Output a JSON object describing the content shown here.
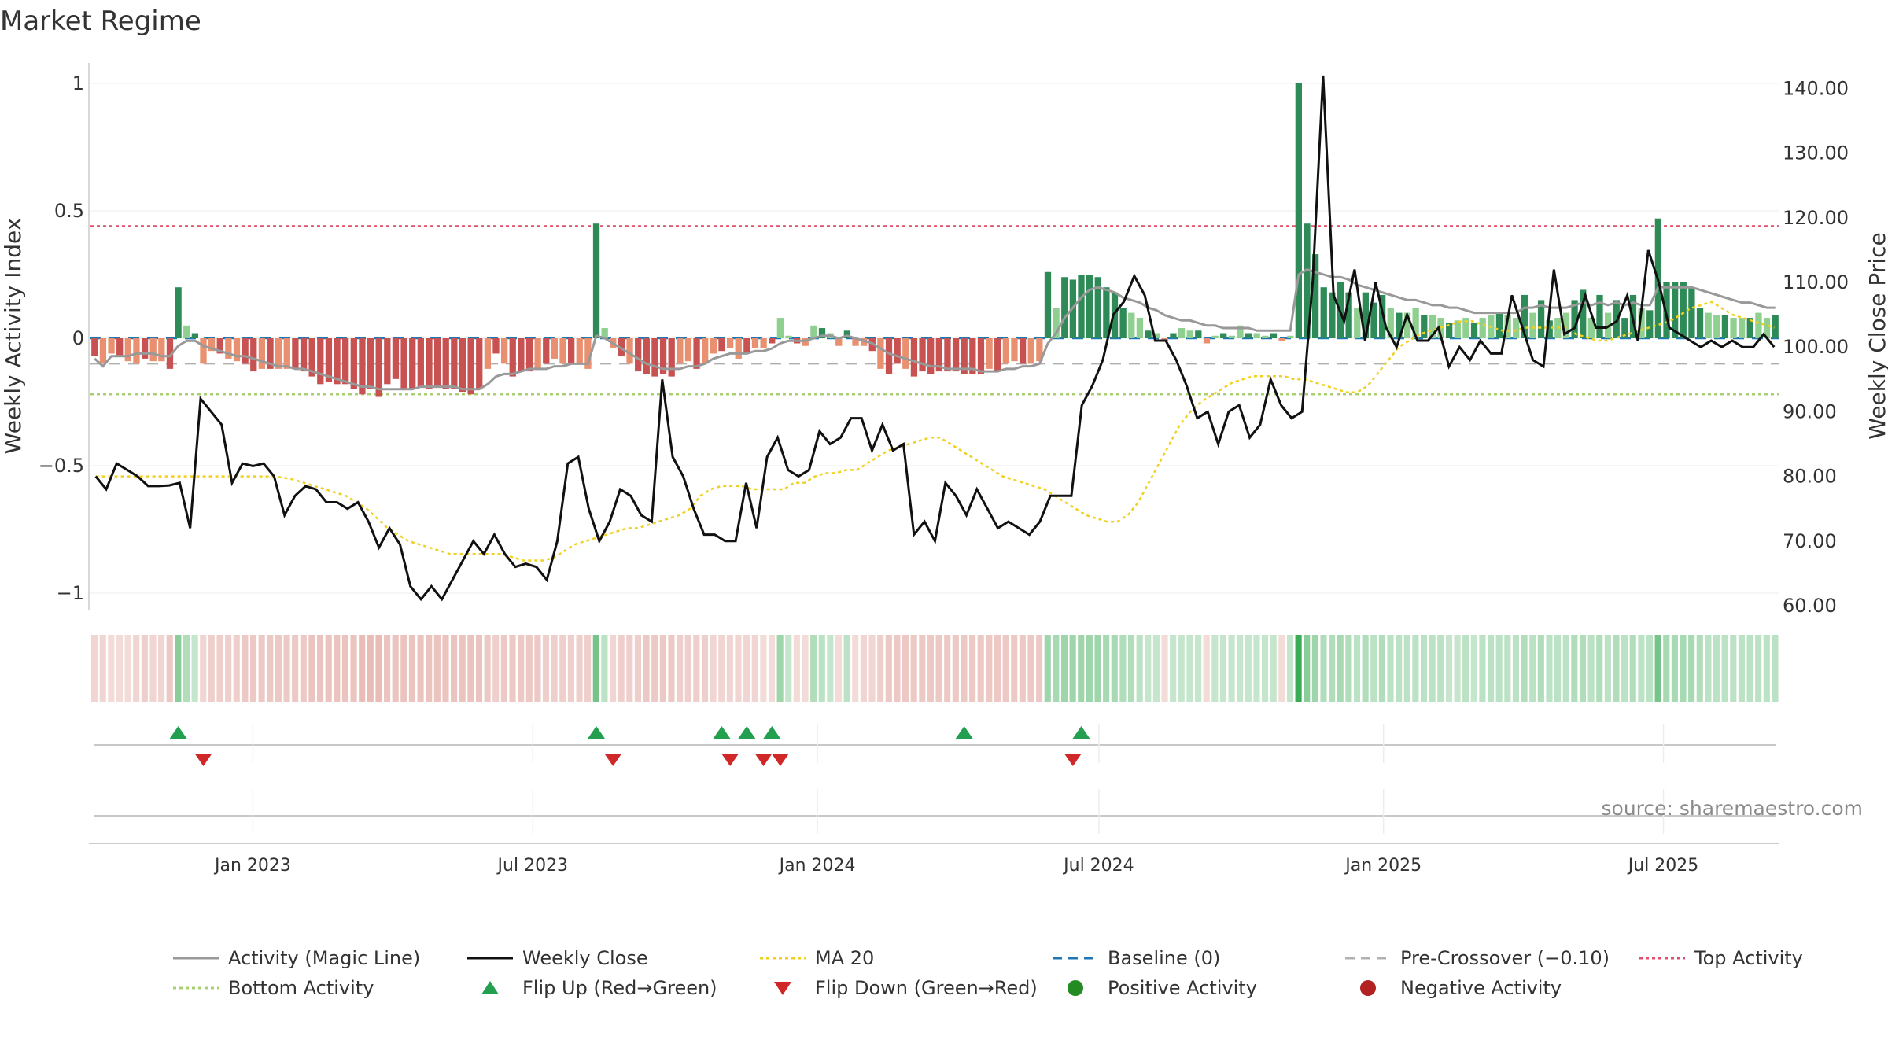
{
  "chart_data": {
    "type": "bar",
    "title": "Market Regime",
    "ylabel_left": "Weekly Activity Index",
    "ylabel_right": "Weekly Close Price",
    "source": "source: sharemaestro.com",
    "x_tick_labels": [
      "Jan 2023",
      "Jul 2023",
      "Jan 2024",
      "Jul 2024",
      "Jan 2025",
      "Jul 2025"
    ],
    "x_tick_dates": [
      "2023-01-01",
      "2023-07-01",
      "2024-01-01",
      "2024-07-01",
      "2025-01-01",
      "2025-07-01"
    ],
    "x_range": [
      "2022-09-18",
      "2025-09-14"
    ],
    "left_axis": {
      "range": [
        -1.05,
        1.05
      ],
      "ticks": [
        -1,
        -0.5,
        0,
        0.5,
        1
      ],
      "tick_labels": [
        "−1",
        "−0.5",
        "0",
        "0.5",
        "1"
      ]
    },
    "right_axis": {
      "range": [
        60,
        143
      ],
      "ticks": [
        60,
        70,
        80,
        90,
        100,
        110,
        120,
        130,
        140
      ],
      "tick_labels": [
        "60.00",
        "70.00",
        "80.00",
        "90.00",
        "100.00",
        "110.00",
        "120.00",
        "130.00",
        "140.00"
      ]
    },
    "reference_lines": {
      "baseline": 0,
      "pre_crossover": -0.1,
      "top_activity": 0.44,
      "bottom_activity": -0.22
    },
    "activity": [
      -0.07,
      -0.1,
      -0.06,
      -0.07,
      -0.09,
      -0.1,
      -0.08,
      -0.09,
      -0.09,
      -0.12,
      0.2,
      0.05,
      0.02,
      -0.1,
      -0.05,
      -0.06,
      -0.08,
      -0.09,
      -0.1,
      -0.13,
      -0.12,
      -0.12,
      -0.12,
      -0.12,
      -0.12,
      -0.13,
      -0.15,
      -0.18,
      -0.17,
      -0.18,
      -0.18,
      -0.2,
      -0.22,
      -0.2,
      -0.23,
      -0.18,
      -0.16,
      -0.2,
      -0.2,
      -0.19,
      -0.2,
      -0.19,
      -0.2,
      -0.2,
      -0.21,
      -0.22,
      -0.2,
      -0.12,
      -0.06,
      -0.1,
      -0.15,
      -0.13,
      -0.13,
      -0.12,
      -0.1,
      -0.08,
      -0.1,
      -0.1,
      -0.1,
      -0.12,
      0.45,
      0.04,
      -0.04,
      -0.07,
      -0.1,
      -0.13,
      -0.14,
      -0.15,
      -0.14,
      -0.15,
      -0.1,
      -0.09,
      -0.12,
      -0.1,
      -0.06,
      -0.05,
      -0.04,
      -0.08,
      -0.06,
      -0.04,
      -0.04,
      -0.02,
      0.08,
      0.01,
      -0.02,
      -0.03,
      0.05,
      0.04,
      0.02,
      -0.03,
      0.03,
      -0.03,
      -0.03,
      -0.05,
      -0.12,
      -0.14,
      -0.1,
      -0.12,
      -0.15,
      -0.13,
      -0.14,
      -0.13,
      -0.13,
      -0.13,
      -0.14,
      -0.14,
      -0.14,
      -0.12,
      -0.13,
      -0.1,
      -0.09,
      -0.1,
      -0.1,
      -0.09,
      0.26,
      0.12,
      0.24,
      0.23,
      0.25,
      0.25,
      0.24,
      0.2,
      0.18,
      0.12,
      0.1,
      0.08,
      0.03,
      0.02,
      -0.01,
      0.02,
      0.04,
      0.03,
      0.03,
      -0.02,
      0.01,
      0.02,
      0.01,
      0.05,
      0.02,
      0.02,
      0.01,
      0.02,
      -0.01,
      0.01,
      1.0,
      0.45,
      0.33,
      0.2,
      0.18,
      0.22,
      0.18,
      0.12,
      0.18,
      0.14,
      0.17,
      0.12,
      0.1,
      0.1,
      0.12,
      0.09,
      0.09,
      0.08,
      0.06,
      0.07,
      0.08,
      0.06,
      0.08,
      0.09,
      0.1,
      0.09,
      0.08,
      0.17,
      0.1,
      0.15,
      0.07,
      0.08,
      0.1,
      0.15,
      0.19,
      0.08,
      0.17,
      0.1,
      0.15,
      0.08,
      0.17,
      0.12,
      0.11,
      0.47,
      0.22,
      0.22,
      0.22,
      0.2,
      0.12,
      0.1,
      0.09,
      0.09,
      0.08,
      0.08,
      0.08,
      0.1,
      0.08,
      0.09
    ],
    "magic_line": [
      -0.08,
      -0.11,
      -0.07,
      -0.07,
      -0.07,
      -0.06,
      -0.06,
      -0.06,
      -0.07,
      -0.07,
      -0.03,
      -0.01,
      -0.01,
      -0.03,
      -0.04,
      -0.05,
      -0.06,
      -0.07,
      -0.07,
      -0.08,
      -0.09,
      -0.1,
      -0.11,
      -0.11,
      -0.12,
      -0.12,
      -0.13,
      -0.14,
      -0.15,
      -0.16,
      -0.17,
      -0.18,
      -0.19,
      -0.19,
      -0.2,
      -0.2,
      -0.2,
      -0.2,
      -0.2,
      -0.19,
      -0.19,
      -0.19,
      -0.19,
      -0.19,
      -0.2,
      -0.2,
      -0.2,
      -0.18,
      -0.15,
      -0.14,
      -0.14,
      -0.13,
      -0.12,
      -0.12,
      -0.12,
      -0.11,
      -0.11,
      -0.1,
      -0.1,
      -0.1,
      0.01,
      0.0,
      -0.02,
      -0.04,
      -0.06,
      -0.08,
      -0.1,
      -0.11,
      -0.12,
      -0.12,
      -0.12,
      -0.11,
      -0.11,
      -0.1,
      -0.08,
      -0.07,
      -0.06,
      -0.06,
      -0.06,
      -0.05,
      -0.05,
      -0.04,
      -0.02,
      -0.01,
      -0.01,
      -0.01,
      0.0,
      0.01,
      0.01,
      0.0,
      0.01,
      0.0,
      -0.01,
      -0.02,
      -0.04,
      -0.06,
      -0.07,
      -0.08,
      -0.09,
      -0.1,
      -0.11,
      -0.11,
      -0.12,
      -0.12,
      -0.12,
      -0.12,
      -0.13,
      -0.13,
      -0.13,
      -0.12,
      -0.12,
      -0.11,
      -0.11,
      -0.1,
      -0.02,
      0.02,
      0.08,
      0.12,
      0.16,
      0.19,
      0.2,
      0.19,
      0.18,
      0.16,
      0.15,
      0.14,
      0.12,
      0.11,
      0.09,
      0.08,
      0.07,
      0.07,
      0.06,
      0.05,
      0.05,
      0.04,
      0.04,
      0.04,
      0.04,
      0.03,
      0.03,
      0.03,
      0.03,
      0.03,
      0.25,
      0.27,
      0.26,
      0.25,
      0.24,
      0.24,
      0.23,
      0.21,
      0.2,
      0.19,
      0.18,
      0.17,
      0.16,
      0.15,
      0.15,
      0.14,
      0.13,
      0.13,
      0.12,
      0.12,
      0.11,
      0.1,
      0.1,
      0.1,
      0.1,
      0.1,
      0.1,
      0.12,
      0.12,
      0.13,
      0.12,
      0.12,
      0.12,
      0.13,
      0.14,
      0.13,
      0.14,
      0.13,
      0.14,
      0.13,
      0.14,
      0.13,
      0.13,
      0.2,
      0.2,
      0.2,
      0.2,
      0.2,
      0.19,
      0.18,
      0.17,
      0.16,
      0.15,
      0.14,
      0.14,
      0.13,
      0.12,
      0.12
    ],
    "weekly_close": [
      80.0,
      78.0,
      82.0,
      81.0,
      80.0,
      78.5,
      78.5,
      78.6,
      79.0,
      72.0,
      92.0,
      90.0,
      88.0,
      79.0,
      82.0,
      81.6,
      82.0,
      80.0,
      74.0,
      77.0,
      78.5,
      78.0,
      76.0,
      76.0,
      75.0,
      76.0,
      73.0,
      69.0,
      72.0,
      69.5,
      63.0,
      61.0,
      63.0,
      61.0,
      64.0,
      67.0,
      70.0,
      68.0,
      71.0,
      68.0,
      66.0,
      66.5,
      66.0,
      64.0,
      70.0,
      82.0,
      83.0,
      75.0,
      70.0,
      73.0,
      78.0,
      77.0,
      74.0,
      73.0,
      95.0,
      83.0,
      80.0,
      75.0,
      71.0,
      71.0,
      70.0,
      70.0,
      79.0,
      72.0,
      83.0,
      86.0,
      81.0,
      80.0,
      81.0,
      87.0,
      85.0,
      86.0,
      89.0,
      89.0,
      84.0,
      88.0,
      84.0,
      85.0,
      71.0,
      73.0,
      70.0,
      79.0,
      77.0,
      74.0,
      78.0,
      75.0,
      72.0,
      73.0,
      72.0,
      71.0,
      73.0,
      77.0,
      77.0,
      77.0,
      91.0,
      94.0,
      98.0,
      105.0,
      107.0,
      111.0,
      108.0,
      101.0,
      101.0,
      98.0,
      94.0,
      89.0,
      90.0,
      85.0,
      90.0,
      91.0,
      86.0,
      88.0,
      95.0,
      91.0,
      89.0,
      90.0,
      110.0,
      142.0,
      108.0,
      104.0,
      112.0,
      101.0,
      110.0,
      103.0,
      100.0,
      105.0,
      101.0,
      101.0,
      103.0,
      97.0,
      100.0,
      98.0,
      101.0,
      99.0,
      99.0,
      108.0,
      103.0,
      98.0,
      97.0,
      112.0,
      102.0,
      103.0,
      108.0,
      103.0,
      103.0,
      104.0,
      108.0,
      101.0,
      115.0,
      110.0,
      103.0,
      102.0,
      101.0,
      100.0,
      101.0,
      100.0,
      101.0,
      100.0,
      100.0,
      102.0,
      100.0
    ],
    "ma20": [
      80.0,
      80.0,
      80.0,
      80.0,
      80.0,
      80.0,
      80.0,
      80.0,
      80.0,
      80.0,
      80.0,
      80.0,
      80.0,
      80.0,
      80.0,
      80.0,
      80.0,
      80.0,
      79.8,
      79.5,
      79.0,
      78.5,
      78.0,
      77.5,
      77.0,
      76.0,
      75.0,
      73.5,
      72.0,
      71.0,
      70.0,
      69.5,
      69.0,
      68.5,
      68.0,
      68.0,
      68.0,
      68.0,
      68.0,
      68.0,
      67.5,
      67.0,
      67.0,
      67.0,
      67.5,
      68.5,
      69.5,
      70.0,
      70.5,
      71.0,
      71.5,
      72.0,
      72.0,
      72.5,
      73.0,
      73.5,
      74.0,
      75.0,
      77.0,
      78.0,
      78.5,
      78.5,
      78.5,
      78.0,
      78.0,
      78.0,
      78.0,
      79.0,
      79.0,
      80.0,
      80.5,
      80.5,
      81.0,
      81.0,
      82.0,
      83.0,
      84.0,
      84.5,
      85.0,
      85.5,
      86.0,
      86.0,
      85.0,
      84.0,
      83.0,
      82.0,
      81.0,
      80.0,
      79.5,
      79.0,
      78.5,
      78.0,
      77.0,
      76.0,
      75.0,
      74.0,
      73.5,
      73.0,
      73.0,
      74.0,
      76.0,
      79.0,
      82.0,
      85.0,
      88.0,
      90.0,
      91.5,
      92.5,
      93.5,
      94.5,
      95.0,
      95.5,
      95.5,
      95.5,
      95.5,
      95.0,
      95.0,
      94.5,
      94.0,
      93.5,
      93.0,
      93.0,
      94.0,
      96.0,
      98.0,
      100.0,
      101.0,
      102.0,
      102.5,
      103.0,
      103.5,
      104.0,
      104.0,
      103.5,
      103.0,
      102.5,
      102.5,
      103.0,
      103.0,
      103.0,
      103.0,
      103.0,
      102.0,
      101.5,
      101.0,
      101.0,
      101.5,
      102.0,
      102.5,
      103.0,
      103.5,
      104.0,
      105.0,
      106.0,
      106.5,
      107.0,
      106.0,
      105.0,
      104.5,
      104.0,
      103.5,
      103.0
    ],
    "regime_strip_intensity": [
      0.35,
      0.35,
      0.3,
      0.3,
      0.3,
      0.35,
      0.4,
      0.35,
      0.35,
      0.45,
      0.6,
      0.4,
      0.3,
      0.35,
      0.4,
      0.4,
      0.4,
      0.4,
      0.45,
      0.45,
      0.45,
      0.45,
      0.45,
      0.45,
      0.45,
      0.45,
      0.5,
      0.5,
      0.5,
      0.5,
      0.5,
      0.5,
      0.55,
      0.55,
      0.55,
      0.5,
      0.5,
      0.5,
      0.5,
      0.5,
      0.5,
      0.5,
      0.5,
      0.5,
      0.5,
      0.5,
      0.5,
      0.45,
      0.4,
      0.45,
      0.45,
      0.45,
      0.45,
      0.45,
      0.4,
      0.4,
      0.4,
      0.4,
      0.4,
      0.4,
      0.7,
      0.35,
      0.35,
      0.4,
      0.4,
      0.4,
      0.45,
      0.45,
      0.45,
      0.45,
      0.4,
      0.4,
      0.4,
      0.4,
      0.35,
      0.35,
      0.35,
      0.35,
      0.35,
      0.35,
      0.3,
      0.3,
      0.5,
      0.3,
      0.3,
      0.3,
      0.4,
      0.35,
      0.3,
      0.3,
      0.35,
      0.3,
      0.35,
      0.35,
      0.4,
      0.45,
      0.45,
      0.45,
      0.45,
      0.45,
      0.45,
      0.45,
      0.45,
      0.45,
      0.45,
      0.45,
      0.45,
      0.45,
      0.45,
      0.45,
      0.45,
      0.45,
      0.45,
      0.45,
      0.5,
      0.45,
      0.5,
      0.5,
      0.5,
      0.5,
      0.5,
      0.45,
      0.45,
      0.4,
      0.4,
      0.35,
      0.3,
      0.3,
      0.3,
      0.3,
      0.3,
      0.3,
      0.3,
      0.3,
      0.3,
      0.3,
      0.3,
      0.3,
      0.3,
      0.3,
      0.3,
      0.3,
      0.3,
      0.3,
      1.0,
      0.6,
      0.5,
      0.4,
      0.4,
      0.45,
      0.4,
      0.35,
      0.4,
      0.35,
      0.4,
      0.35,
      0.35,
      0.35,
      0.35,
      0.35,
      0.35,
      0.35,
      0.3,
      0.3,
      0.35,
      0.3,
      0.35,
      0.35,
      0.35,
      0.35,
      0.35,
      0.4,
      0.35,
      0.4,
      0.35,
      0.35,
      0.35,
      0.4,
      0.4,
      0.35,
      0.4,
      0.35,
      0.4,
      0.35,
      0.4,
      0.35,
      0.35,
      0.7,
      0.45,
      0.45,
      0.45,
      0.45,
      0.4,
      0.35,
      0.35,
      0.35,
      0.35,
      0.35,
      0.35,
      0.35,
      0.35,
      0.35
    ],
    "flip_up_weeks": [
      10,
      60,
      75,
      78,
      81,
      104,
      118
    ],
    "flip_down_weeks": [
      13,
      62,
      76,
      80,
      82,
      117
    ],
    "colors": {
      "strong_positive": "#2e8b57",
      "weak_positive": "#8fcf8f",
      "strong_negative": "#c85252",
      "weak_negative": "#e89070",
      "magic_line": "#999999",
      "weekly_close": "#111111",
      "ma20": "#f0d020",
      "baseline": "#1f77b4",
      "pre_crossover": "#b0b0b0",
      "top_activity": "#e0506a",
      "bottom_activity": "#a8d070",
      "flip_up": "#22a050",
      "flip_down": "#d02828",
      "positive_activity": "#228b22",
      "negative_activity": "#b22222"
    },
    "legend": [
      {
        "label": "Activity (Magic Line)",
        "kind": "line",
        "color": "#999999",
        "dash": ""
      },
      {
        "label": "Weekly Close",
        "kind": "line",
        "color": "#111111",
        "dash": ""
      },
      {
        "label": "MA 20",
        "kind": "line",
        "color": "#f0d020",
        "dash": "4,4"
      },
      {
        "label": "Baseline (0)",
        "kind": "line",
        "color": "#1f77b4",
        "dash": "12,8"
      },
      {
        "label": "Pre-Crossover (−0.10)",
        "kind": "line",
        "color": "#b0b0b0",
        "dash": "12,8"
      },
      {
        "label": "Top Activity",
        "kind": "line",
        "color": "#e0506a",
        "dash": "4,4"
      },
      {
        "label": "Bottom Activity",
        "kind": "line",
        "color": "#a8d070",
        "dash": "4,4"
      },
      {
        "label": "Flip Up (Red→Green)",
        "kind": "tri-up",
        "color": "#22a050",
        "dash": ""
      },
      {
        "label": "Flip Down (Green→Red)",
        "kind": "tri-down",
        "color": "#d02828",
        "dash": ""
      },
      {
        "label": "Positive Activity",
        "kind": "dot",
        "color": "#228b22",
        "dash": ""
      },
      {
        "label": "Negative Activity",
        "kind": "dot",
        "color": "#b22222",
        "dash": ""
      }
    ],
    "legend_placement": "bottom"
  }
}
